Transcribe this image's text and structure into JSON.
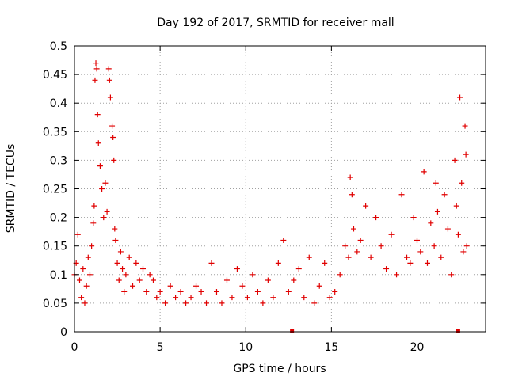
{
  "chart_data": {
    "type": "scatter",
    "title": "Day 192 of 2017, SRMTID for receiver mall",
    "xlabel": "GPS time / hours",
    "ylabel": "SRMTID / TECUs",
    "xlim": [
      0,
      24
    ],
    "ylim": [
      0,
      0.5
    ],
    "x_ticks": [
      0,
      5,
      10,
      15,
      20
    ],
    "y_ticks": [
      0,
      0.05,
      0.1,
      0.15,
      0.2,
      0.25,
      0.3,
      0.35,
      0.4,
      0.45,
      0.5
    ],
    "x_tick_labels": [
      "0",
      "5",
      "10",
      "15",
      "20"
    ],
    "y_tick_labels": [
      "0",
      "0.05",
      "0.1",
      "0.15",
      "0.2",
      "0.25",
      "0.3",
      "0.35",
      "0.4",
      "0.45",
      "0.5"
    ],
    "grid": true,
    "marker": "+",
    "color": "#e00000",
    "gap_markers_x": [
      12.7,
      22.4
    ],
    "series": [
      {
        "name": "SRMTID",
        "x": [
          0.0,
          0.1,
          0.2,
          0.3,
          0.4,
          0.5,
          0.6,
          0.7,
          0.8,
          0.9,
          1.0,
          1.1,
          1.15,
          1.2,
          1.25,
          1.3,
          1.35,
          1.4,
          1.5,
          1.6,
          1.7,
          1.8,
          1.9,
          2.0,
          2.05,
          2.1,
          2.2,
          2.25,
          2.3,
          2.35,
          2.4,
          2.5,
          2.6,
          2.7,
          2.8,
          2.9,
          3.0,
          3.2,
          3.4,
          3.6,
          3.8,
          4.0,
          4.2,
          4.4,
          4.6,
          4.8,
          5.0,
          5.3,
          5.6,
          5.9,
          6.2,
          6.5,
          6.8,
          7.1,
          7.4,
          7.7,
          8.0,
          8.3,
          8.6,
          8.9,
          9.2,
          9.5,
          9.8,
          10.1,
          10.4,
          10.7,
          11.0,
          11.3,
          11.6,
          11.9,
          12.2,
          12.5,
          12.8,
          13.1,
          13.4,
          13.7,
          14.0,
          14.3,
          14.6,
          14.9,
          15.2,
          15.5,
          15.8,
          16.0,
          16.1,
          16.2,
          16.3,
          16.5,
          16.7,
          17.0,
          17.3,
          17.6,
          17.9,
          18.2,
          18.5,
          18.8,
          19.1,
          19.4,
          19.6,
          19.8,
          20.0,
          20.2,
          20.4,
          20.6,
          20.8,
          21.0,
          21.1,
          21.2,
          21.4,
          21.6,
          21.8,
          22.0,
          22.2,
          22.3,
          22.4,
          22.5,
          22.6,
          22.7,
          22.8,
          22.85,
          22.9
        ],
        "y": [
          0.1,
          0.12,
          0.17,
          0.09,
          0.06,
          0.11,
          0.05,
          0.08,
          0.13,
          0.1,
          0.15,
          0.19,
          0.22,
          0.44,
          0.47,
          0.46,
          0.38,
          0.33,
          0.29,
          0.25,
          0.2,
          0.26,
          0.21,
          0.46,
          0.44,
          0.41,
          0.36,
          0.34,
          0.3,
          0.18,
          0.16,
          0.12,
          0.09,
          0.14,
          0.11,
          0.07,
          0.1,
          0.13,
          0.08,
          0.12,
          0.09,
          0.11,
          0.07,
          0.1,
          0.09,
          0.06,
          0.07,
          0.05,
          0.08,
          0.06,
          0.07,
          0.05,
          0.06,
          0.08,
          0.07,
          0.05,
          0.12,
          0.07,
          0.05,
          0.09,
          0.06,
          0.11,
          0.08,
          0.06,
          0.1,
          0.07,
          0.05,
          0.09,
          0.06,
          0.12,
          0.16,
          0.07,
          0.09,
          0.11,
          0.06,
          0.13,
          0.05,
          0.08,
          0.12,
          0.06,
          0.07,
          0.1,
          0.15,
          0.13,
          0.27,
          0.24,
          0.18,
          0.14,
          0.16,
          0.22,
          0.13,
          0.2,
          0.15,
          0.11,
          0.17,
          0.1,
          0.24,
          0.13,
          0.12,
          0.2,
          0.16,
          0.14,
          0.28,
          0.12,
          0.19,
          0.15,
          0.26,
          0.21,
          0.13,
          0.24,
          0.18,
          0.1,
          0.3,
          0.22,
          0.17,
          0.41,
          0.26,
          0.14,
          0.36,
          0.31,
          0.15
        ]
      }
    ]
  }
}
